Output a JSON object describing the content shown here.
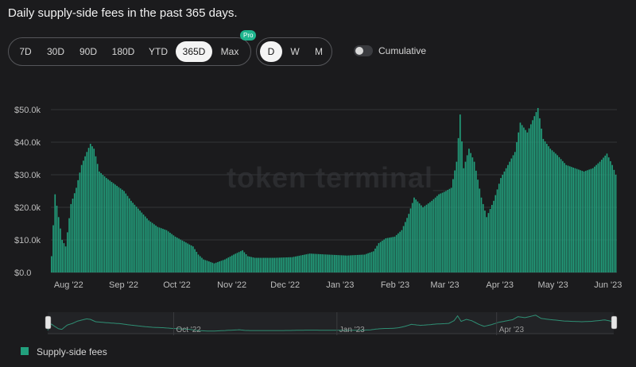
{
  "title": "Daily supply-side fees in the past 365 days.",
  "range_buttons": [
    "7D",
    "30D",
    "90D",
    "180D",
    "YTD",
    "365D",
    "Max"
  ],
  "active_range": "365D",
  "pro_badge": "Pro",
  "granularity_buttons": [
    "D",
    "W",
    "M"
  ],
  "active_granularity": "D",
  "cumulative_label": "Cumulative",
  "cumulative_on": false,
  "watermark": "token terminal_",
  "colors": {
    "bar": "#22a07d",
    "navigator_line": "#2f8f74",
    "background": "#1b1b1d"
  },
  "legend": {
    "label": "Supply-side fees"
  },
  "navigator_labels": [
    "Oct '22",
    "Jan '23",
    "Apr '23"
  ],
  "chart_data": {
    "type": "bar",
    "ylim": [
      0,
      50000
    ],
    "y_ticks": [
      "$0.0",
      "$10.0k",
      "$20.0k",
      "$30.0k",
      "$40.0k",
      "$50.0k"
    ],
    "x_tick_labels": [
      "Aug '22",
      "Sep '22",
      "Oct '22",
      "Nov '22",
      "Dec '22",
      "Jan '23",
      "Feb '23",
      "Mar '23",
      "Apr '23",
      "May '23",
      "Jun '23"
    ],
    "series": [
      {
        "name": "Supply-side fees",
        "points": [
          [
            "2022-07-22",
            5000
          ],
          [
            "2022-07-24",
            24000
          ],
          [
            "2022-07-26",
            17000
          ],
          [
            "2022-07-28",
            10000
          ],
          [
            "2022-07-30",
            8000
          ],
          [
            "2022-08-02",
            21000
          ],
          [
            "2022-08-05",
            26000
          ],
          [
            "2022-08-08",
            33000
          ],
          [
            "2022-08-11",
            37000
          ],
          [
            "2022-08-13",
            39500
          ],
          [
            "2022-08-15",
            38000
          ],
          [
            "2022-08-18",
            31000
          ],
          [
            "2022-08-22",
            29000
          ],
          [
            "2022-08-27",
            27000
          ],
          [
            "2022-09-01",
            25000
          ],
          [
            "2022-09-05",
            22000
          ],
          [
            "2022-09-10",
            19000
          ],
          [
            "2022-09-15",
            16000
          ],
          [
            "2022-09-20",
            14000
          ],
          [
            "2022-09-25",
            13000
          ],
          [
            "2022-09-30",
            11000
          ],
          [
            "2022-10-05",
            9500
          ],
          [
            "2022-10-10",
            8000
          ],
          [
            "2022-10-13",
            5500
          ],
          [
            "2022-10-16",
            4000
          ],
          [
            "2022-10-22",
            2800
          ],
          [
            "2022-10-28",
            4000
          ],
          [
            "2022-11-02",
            5500
          ],
          [
            "2022-11-07",
            6800
          ],
          [
            "2022-11-10",
            5000
          ],
          [
            "2022-11-14",
            4500
          ],
          [
            "2022-11-25",
            4500
          ],
          [
            "2022-12-05",
            4700
          ],
          [
            "2022-12-15",
            5800
          ],
          [
            "2022-12-25",
            5500
          ],
          [
            "2023-01-05",
            5200
          ],
          [
            "2023-01-15",
            5500
          ],
          [
            "2023-01-20",
            6500
          ],
          [
            "2023-01-23",
            9000
          ],
          [
            "2023-01-27",
            10500
          ],
          [
            "2023-02-01",
            11000
          ],
          [
            "2023-02-05",
            13000
          ],
          [
            "2023-02-09",
            18000
          ],
          [
            "2023-02-12",
            23000
          ],
          [
            "2023-02-17",
            20000
          ],
          [
            "2023-02-22",
            22000
          ],
          [
            "2023-02-26",
            24000
          ],
          [
            "2023-03-02",
            25000
          ],
          [
            "2023-03-05",
            26000
          ],
          [
            "2023-03-08",
            34000
          ],
          [
            "2023-03-10",
            48500
          ],
          [
            "2023-03-12",
            32000
          ],
          [
            "2023-03-15",
            38000
          ],
          [
            "2023-03-18",
            34000
          ],
          [
            "2023-03-22",
            23000
          ],
          [
            "2023-03-25",
            17000
          ],
          [
            "2023-03-29",
            22000
          ],
          [
            "2023-04-02",
            29000
          ],
          [
            "2023-04-06",
            33000
          ],
          [
            "2023-04-10",
            37000
          ],
          [
            "2023-04-13",
            46000
          ],
          [
            "2023-04-17",
            43000
          ],
          [
            "2023-04-21",
            48000
          ],
          [
            "2023-04-23",
            50500
          ],
          [
            "2023-04-26",
            41000
          ],
          [
            "2023-04-30",
            38000
          ],
          [
            "2023-05-04",
            36000
          ],
          [
            "2023-05-09",
            33000
          ],
          [
            "2023-05-14",
            32000
          ],
          [
            "2023-05-19",
            31000
          ],
          [
            "2023-05-24",
            32000
          ],
          [
            "2023-05-28",
            34000
          ],
          [
            "2023-06-01",
            36500
          ],
          [
            "2023-06-04",
            33000
          ],
          [
            "2023-06-06",
            30000
          ]
        ]
      }
    ]
  }
}
